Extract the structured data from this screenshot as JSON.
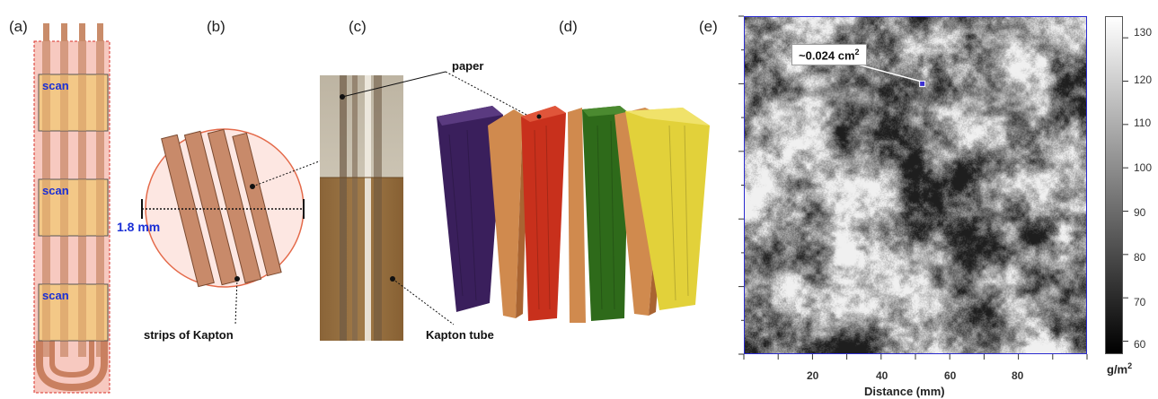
{
  "panels": {
    "a": {
      "letter": "(a)",
      "scan_labels": [
        "scan",
        "scan",
        "scan"
      ]
    },
    "b": {
      "letter": "(b)",
      "dimension": "1.8 mm",
      "label_strips": "strips of Kapton"
    },
    "c": {
      "letter": "(c)",
      "label_paper": "paper",
      "label_tube": "Kapton tube"
    },
    "d": {
      "letter": "(d)",
      "slab_colors": [
        "#3a1f5c",
        "#c8301c",
        "#2e6a1a",
        "#e2d13a"
      ],
      "kapton_color": "#d08a4e"
    },
    "e": {
      "letter": "(e)",
      "area_label": "~0.024 cm",
      "area_label_sup": "2",
      "xlabel": "Distance (mm)",
      "x_ticks": [
        "20",
        "40",
        "60",
        "80"
      ],
      "colorbar_ticks": [
        "130",
        "120",
        "110",
        "100",
        "90",
        "80",
        "70",
        "60"
      ],
      "colorbar_unit": "g/m",
      "colorbar_unit_sup": "2"
    }
  },
  "chart_data": {
    "type": "heatmap",
    "title": "",
    "xlabel": "Distance (mm)",
    "ylabel": "",
    "xlim": [
      0,
      100
    ],
    "ylim": [
      0,
      100
    ],
    "x_ticks": [
      20,
      40,
      60,
      80
    ],
    "colorbar": {
      "range": [
        57,
        135
      ],
      "ticks": [
        60,
        70,
        80,
        90,
        100,
        110,
        120,
        130
      ],
      "unit": "g/m2",
      "colormap": "grayscale (black low, white high)"
    },
    "annotation": {
      "text": "~0.024 cm2",
      "marker_xy": [
        52,
        80
      ]
    }
  }
}
